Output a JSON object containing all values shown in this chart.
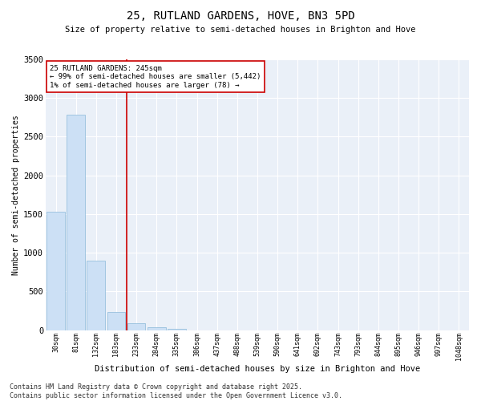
{
  "title": "25, RUTLAND GARDENS, HOVE, BN3 5PD",
  "subtitle": "Size of property relative to semi-detached houses in Brighton and Hove",
  "xlabel": "Distribution of semi-detached houses by size in Brighton and Hove",
  "ylabel": "Number of semi-detached properties",
  "bar_color": "#cce0f5",
  "bar_edge_color": "#8ab8d8",
  "categories": [
    "30sqm",
    "81sqm",
    "132sqm",
    "183sqm",
    "233sqm",
    "284sqm",
    "335sqm",
    "386sqm",
    "437sqm",
    "488sqm",
    "539sqm",
    "590sqm",
    "641sqm",
    "692sqm",
    "743sqm",
    "793sqm",
    "844sqm",
    "895sqm",
    "946sqm",
    "997sqm",
    "1048sqm"
  ],
  "values": [
    1530,
    2780,
    900,
    240,
    95,
    40,
    20,
    0,
    0,
    0,
    0,
    0,
    0,
    0,
    0,
    0,
    0,
    0,
    0,
    0,
    0
  ],
  "vline_pos": 3.5,
  "property_line_label": "25 RUTLAND GARDENS: 245sqm",
  "annotation_line1": "← 99% of semi-detached houses are smaller (5,442)",
  "annotation_line2": "1% of semi-detached houses are larger (78) →",
  "ylim": [
    0,
    3500
  ],
  "yticks": [
    0,
    500,
    1000,
    1500,
    2000,
    2500,
    3000,
    3500
  ],
  "bg_color": "#eaf0f8",
  "footer_line1": "Contains HM Land Registry data © Crown copyright and database right 2025.",
  "footer_line2": "Contains public sector information licensed under the Open Government Licence v3.0.",
  "annotation_box_color": "#cc0000",
  "vline_color": "#cc0000"
}
